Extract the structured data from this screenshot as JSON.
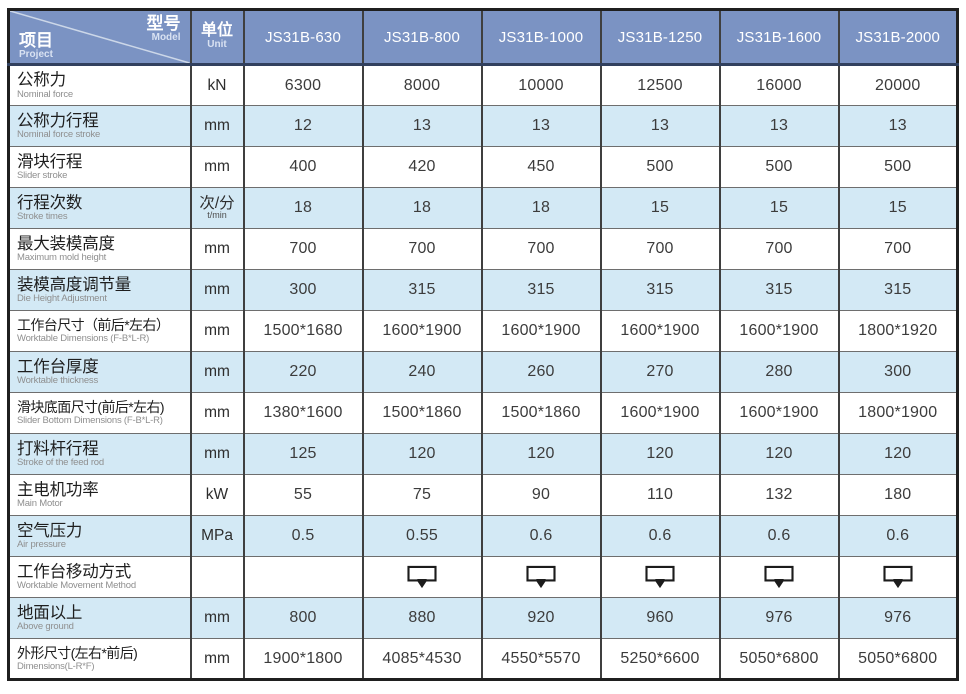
{
  "colors": {
    "header_bg": "#7b93c3",
    "header_text": "#ffffff",
    "header_subtext": "#d9e2f2",
    "row_shade": "#d3e9f5",
    "grid_line": "#3f3f3f",
    "outer_border": "#1f1f1f",
    "value_text": "#3c3c3c"
  },
  "icons": {
    "ICON": "worktable-move-icon"
  },
  "table": {
    "corner": {
      "model_zh": "型号",
      "model_en": "Model",
      "project_zh": "项目",
      "project_en": "Project"
    },
    "unit_header": {
      "zh": "单位",
      "en": "Unit"
    },
    "models": [
      "JS31B-630",
      "JS31B-800",
      "JS31B-1000",
      "JS31B-1250",
      "JS31B-1600",
      "JS31B-2000"
    ],
    "rows": [
      {
        "zh": "公称力",
        "en": "Nominal force",
        "unit": "kN",
        "unit_sub": "",
        "shaded": false,
        "values": [
          "6300",
          "8000",
          "10000",
          "12500",
          "16000",
          "20000"
        ]
      },
      {
        "zh": "公称力行程",
        "en": "Nominal force stroke",
        "unit": "mm",
        "unit_sub": "",
        "shaded": true,
        "values": [
          "12",
          "13",
          "13",
          "13",
          "13",
          "13"
        ]
      },
      {
        "zh": "滑块行程",
        "en": "Slider stroke",
        "unit": "mm",
        "unit_sub": "",
        "shaded": false,
        "values": [
          "400",
          "420",
          "450",
          "500",
          "500",
          "500"
        ]
      },
      {
        "zh": "行程次数",
        "en": "Stroke times",
        "unit": "次/分",
        "unit_sub": "t/min",
        "shaded": true,
        "values": [
          "18",
          "18",
          "18",
          "15",
          "15",
          "15"
        ]
      },
      {
        "zh": "最大装模高度",
        "en": "Maximum mold height",
        "unit": "mm",
        "unit_sub": "",
        "shaded": false,
        "values": [
          "700",
          "700",
          "700",
          "700",
          "700",
          "700"
        ]
      },
      {
        "zh": "装模高度调节量",
        "en": "Die Height Adjustment",
        "unit": "mm",
        "unit_sub": "",
        "shaded": true,
        "values": [
          "300",
          "315",
          "315",
          "315",
          "315",
          "315"
        ]
      },
      {
        "zh": "工作台尺寸（前后*左右）",
        "en": "Worktable Dimensions (F-B*L-R)",
        "unit": "mm",
        "unit_sub": "",
        "shaded": false,
        "values": [
          "1500*1680",
          "1600*1900",
          "1600*1900",
          "1600*1900",
          "1600*1900",
          "1800*1920"
        ]
      },
      {
        "zh": "工作台厚度",
        "en": "Worktable thickness",
        "unit": "mm",
        "unit_sub": "",
        "shaded": true,
        "values": [
          "220",
          "240",
          "260",
          "270",
          "280",
          "300"
        ]
      },
      {
        "zh": "滑块底面尺寸(前后*左右)",
        "en": "Slider Bottom Dimensions (F-B*L-R)",
        "unit": "mm",
        "unit_sub": "",
        "shaded": false,
        "values": [
          "1380*1600",
          "1500*1860",
          "1500*1860",
          "1600*1900",
          "1600*1900",
          "1800*1900"
        ]
      },
      {
        "zh": "打料杆行程",
        "en": "Stroke of the feed rod",
        "unit": "mm",
        "unit_sub": "",
        "shaded": true,
        "values": [
          "125",
          "120",
          "120",
          "120",
          "120",
          "120"
        ]
      },
      {
        "zh": "主电机功率",
        "en": "Main Motor",
        "unit": "kW",
        "unit_sub": "",
        "shaded": false,
        "values": [
          "55",
          "75",
          "90",
          "110",
          "132",
          "180"
        ]
      },
      {
        "zh": "空气压力",
        "en": "Air pressure",
        "unit": "MPa",
        "unit_sub": "",
        "shaded": true,
        "values": [
          "0.5",
          "0.55",
          "0.6",
          "0.6",
          "0.6",
          "0.6"
        ]
      },
      {
        "zh": "工作台移动方式",
        "en": "Worktable Movement Method",
        "unit": "",
        "unit_sub": "",
        "shaded": false,
        "values": [
          "",
          "ICON",
          "ICON",
          "ICON",
          "ICON",
          "ICON"
        ]
      },
      {
        "zh": "地面以上",
        "en": "Above ground",
        "unit": "mm",
        "unit_sub": "",
        "shaded": true,
        "values": [
          "800",
          "880",
          "920",
          "960",
          "976",
          "976"
        ]
      },
      {
        "zh": "外形尺寸(左右*前后)",
        "en": "Dimensions(L-R*F)",
        "unit": "mm",
        "unit_sub": "",
        "shaded": false,
        "values": [
          "1900*1800",
          "4085*4530",
          "4550*5570",
          "5250*6600",
          "5050*6800",
          "5050*6800"
        ]
      }
    ]
  }
}
